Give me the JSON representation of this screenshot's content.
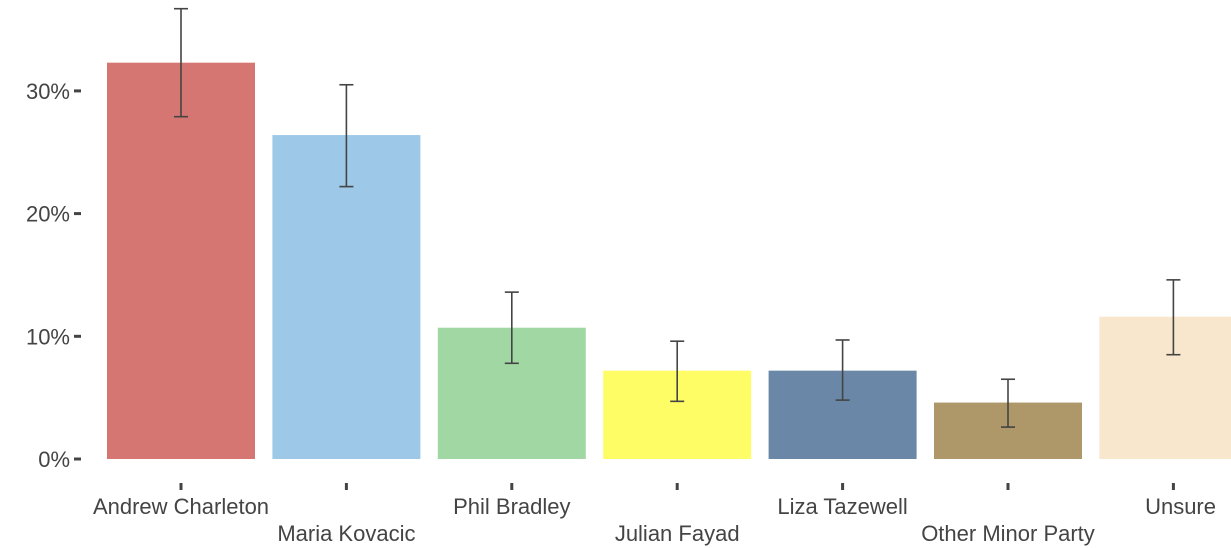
{
  "chart_data": {
    "type": "bar",
    "title": "",
    "xlabel": "",
    "ylabel": "",
    "y_tick_labels": [
      "0%",
      "10%",
      "20%",
      "30%"
    ],
    "y_ticks": [
      0,
      10,
      20,
      30
    ],
    "ylim": [
      0,
      37.5
    ],
    "grid": false,
    "legend": "none",
    "categories": [
      "Andrew Charleton",
      "Maria Kovacic",
      "Phil Bradley",
      "Julian Fayad",
      "Liza Tazewell",
      "Other Minor Party",
      "Unsure"
    ],
    "values": [
      32.3,
      26.4,
      10.7,
      7.2,
      7.2,
      4.6,
      11.6
    ],
    "error_low": [
      27.9,
      22.2,
      7.8,
      4.7,
      4.8,
      2.6,
      8.5
    ],
    "error_high": [
      36.7,
      30.5,
      13.6,
      9.6,
      9.7,
      6.5,
      14.6
    ],
    "colors": [
      "#d67672",
      "#9dc8e8",
      "#a0d7a2",
      "#fffd66",
      "#6b87a7",
      "#ae9869",
      "#f8e7cc"
    ]
  }
}
